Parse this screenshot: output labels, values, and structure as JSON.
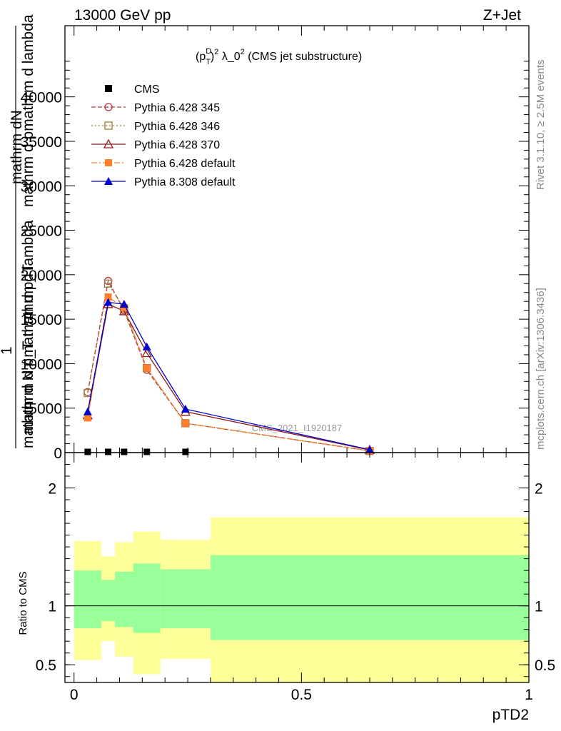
{
  "header": {
    "energy_label": "13000 GeV pp",
    "process_label": "Z+Jet",
    "plot_title": "(p_T^D)^2 λ_0^2 (CMS jet substructure)",
    "title_main": "(p",
    "title_sup_D": "D",
    "title_sub_T": "T",
    "title_close": ")",
    "title_sup_2": "2",
    "title_mid": " λ_0",
    "title_sup_2b": "2",
    "title_rest": " (CMS jet substructure)",
    "side_label_rivet": "Rivet 3.1.10, ≥ 2.5M events",
    "side_label_mcplots": "mcplots.cern.ch [arXiv:1306.3436]",
    "watermark": "CMS_2021_I1920187"
  },
  "axes": {
    "ylabel_line1": "mathrm d N",
    "ylabel_line2": "mathrm d p_T mathrm d lambda",
    "ylabel_numerator": "1",
    "ylabel_denominator": "mathrm d N / mathrm d p_T",
    "ylabel_overlay_a": "mathrm dN",
    "ylabel_overlay_b": "mathrm d pmathrm d lambda",
    "ratio_ylabel": "Ratio to CMS",
    "xlabel": "pTD2"
  },
  "legend": {
    "entries": [
      {
        "label": "CMS",
        "color": "#000000",
        "marker": "square-filled",
        "line": "none"
      },
      {
        "label": "Pythia 6.428 345",
        "color": "#b33a3a",
        "marker": "circle-open",
        "line": "dashed"
      },
      {
        "label": "Pythia 6.428 346",
        "color": "#a0783c",
        "marker": "square-open",
        "line": "dotted"
      },
      {
        "label": "Pythia 6.428 370",
        "color": "#8b1a1a",
        "marker": "triangle-open",
        "line": "solid"
      },
      {
        "label": "Pythia 6.428 default",
        "color": "#ff7f2a",
        "marker": "square-filled",
        "line": "dashdot"
      },
      {
        "label": "Pythia 8.308 default",
        "color": "#0000cc",
        "marker": "triangle-filled",
        "line": "solid"
      }
    ]
  },
  "chart_data": {
    "type": "line",
    "xlim": [
      -0.02,
      1.0
    ],
    "ylim": [
      0,
      48000
    ],
    "x_ticks": [
      0,
      0.5,
      1
    ],
    "x_tick_labels": [
      "0",
      "0.5",
      "1"
    ],
    "y_ticks": [
      0,
      5000,
      10000,
      15000,
      20000,
      25000,
      30000,
      35000,
      40000
    ],
    "y_tick_labels": [
      "0",
      "5000",
      "10000",
      "15000",
      "20000",
      "25000",
      "30000",
      "35000",
      "40000"
    ],
    "ratio_ylim": [
      0.35,
      2.3
    ],
    "ratio_ticks": [
      0.5,
      1,
      2
    ],
    "ratio_tick_labels": [
      "0.5",
      "1",
      "2"
    ],
    "series": [
      {
        "name": "CMS",
        "x": [
          0.03,
          0.075,
          0.11,
          0.16,
          0.245
        ],
        "y": [
          0,
          0,
          0,
          0,
          0
        ]
      },
      {
        "name": "Pythia 6.428 345",
        "x": [
          0.03,
          0.075,
          0.11,
          0.16,
          0.245,
          0.65
        ],
        "y": [
          6800,
          19300,
          16000,
          9300,
          3300,
          200
        ]
      },
      {
        "name": "Pythia 6.428 346",
        "x": [
          0.03,
          0.075,
          0.11,
          0.16,
          0.245,
          0.65
        ],
        "y": [
          6700,
          19000,
          16200,
          9500,
          3300,
          180
        ]
      },
      {
        "name": "Pythia 6.428 370",
        "x": [
          0.03,
          0.075,
          0.11,
          0.16,
          0.245,
          0.65
        ],
        "y": [
          4200,
          16700,
          15900,
          11200,
          4600,
          300
        ]
      },
      {
        "name": "Pythia 6.428 default",
        "x": [
          0.03,
          0.075,
          0.11,
          0.16,
          0.245,
          0.65
        ],
        "y": [
          3900,
          17500,
          16300,
          9500,
          3300,
          200
        ]
      },
      {
        "name": "Pythia 8.308 default",
        "x": [
          0.03,
          0.075,
          0.11,
          0.16,
          0.245,
          0.65
        ],
        "y": [
          4600,
          16900,
          16700,
          11900,
          4900,
          330
        ]
      }
    ],
    "ratio_bands": [
      {
        "x0": 0.0,
        "x1": 0.06,
        "inner": [
          0.81,
          1.3
        ],
        "outer": [
          0.54,
          1.55
        ]
      },
      {
        "x0": 0.06,
        "x1": 0.09,
        "inner": [
          0.87,
          1.22
        ],
        "outer": [
          0.7,
          1.42
        ]
      },
      {
        "x0": 0.09,
        "x1": 0.13,
        "inner": [
          0.82,
          1.29
        ],
        "outer": [
          0.57,
          1.54
        ]
      },
      {
        "x0": 0.13,
        "x1": 0.19,
        "inner": [
          0.77,
          1.36
        ],
        "outer": [
          0.42,
          1.63
        ]
      },
      {
        "x0": 0.19,
        "x1": 0.3,
        "inner": [
          0.81,
          1.31
        ],
        "outer": [
          0.55,
          1.56
        ]
      },
      {
        "x0": 0.3,
        "x1": 1.0,
        "inner": [
          0.71,
          1.43
        ],
        "outer": [
          0.35,
          1.75
        ]
      }
    ]
  }
}
